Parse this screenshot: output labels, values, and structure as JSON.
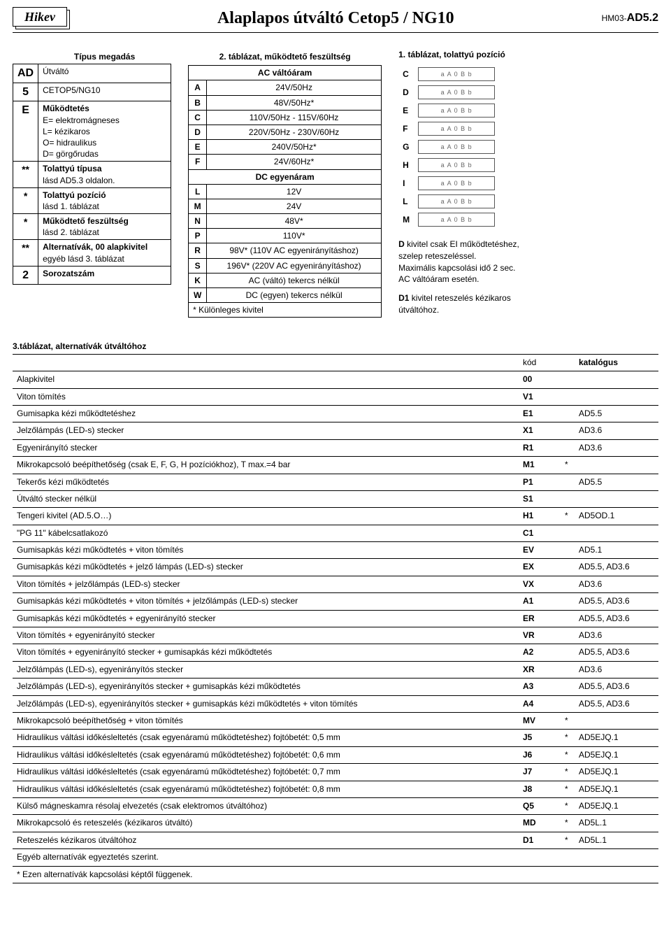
{
  "header": {
    "logo": "Hikev",
    "title": "Alaplapos útváltó Cetop5 / NG10",
    "doc_prefix": "HM03-",
    "doc_code": "AD5.2"
  },
  "table1": {
    "heading": "Típus megadás",
    "rows": [
      {
        "code": "AD",
        "big": true,
        "lines": [
          "Útváltó"
        ]
      },
      {
        "code": "5",
        "big": true,
        "lines": [
          "CETOP5/NG10"
        ]
      },
      {
        "code": "E",
        "big": true,
        "lines": [
          "Működtetés",
          "E= elektromágneses",
          "L= kézikaros",
          "O= hidraulikus",
          "D= görgőrudas"
        ],
        "bold_first": true
      },
      {
        "code": "**",
        "lines": [
          "Tolattyú típusa",
          "lásd AD5.3 oldalon."
        ],
        "bold_first": true
      },
      {
        "code": "*",
        "lines": [
          "Tolattyú pozíció",
          "lásd 1. táblázat"
        ],
        "bold_first": true
      },
      {
        "code": "*",
        "lines": [
          "Működtető feszültség",
          "lásd 2. táblázat"
        ],
        "bold_first": true
      },
      {
        "code": "**",
        "lines": [
          "Alternatívák, 00 alapkivitel",
          "egyéb lásd 3. táblázat"
        ],
        "bold_first": true
      },
      {
        "code": "2",
        "big": true,
        "lines": [
          "Sorozatszám"
        ],
        "bold_first": true
      }
    ]
  },
  "table2": {
    "title": "2. táblázat, működtető feszültség",
    "ac_header": "AC váltóáram",
    "ac": [
      [
        "A",
        "24V/50Hz"
      ],
      [
        "B",
        "48V/50Hz*"
      ],
      [
        "C",
        "110V/50Hz - 115V/60Hz"
      ],
      [
        "D",
        "220V/50Hz - 230V/60Hz"
      ],
      [
        "E",
        "240V/50Hz*"
      ],
      [
        "F",
        "24V/60Hz*"
      ]
    ],
    "dc_header": "DC egyenáram",
    "dc": [
      [
        "L",
        "12V"
      ],
      [
        "M",
        "24V"
      ],
      [
        "N",
        "48V*"
      ],
      [
        "P",
        "110V*"
      ],
      [
        "R",
        "98V* (110V AC egyenirányításhoz)"
      ],
      [
        "S",
        "196V* (220V AC egyenirányításhoz)"
      ],
      [
        "K",
        "AC (váltó) tekercs nélkül"
      ],
      [
        "W",
        "DC (egyen) tekercs nélkül"
      ]
    ],
    "footer": "* Különleges kivitel"
  },
  "right": {
    "title": "1. táblázat, tolattyú pozíció",
    "positions": [
      "C",
      "D",
      "E",
      "F",
      "G",
      "H",
      "I",
      "L",
      "M"
    ],
    "symbol_text": "a  A  0  B  b",
    "note1_lines": [
      "D kivitel csak EI működtetéshez,",
      "szelep reteszeléssel.",
      "Maximális kapcsolási idő 2 sec.",
      "  AC váltóáram esetén."
    ],
    "note2_lines": [
      "D1 kivitel reteszelés kézikaros",
      "útváltóhoz."
    ]
  },
  "table3": {
    "title": "3.táblázat, alternatívák útváltóhoz",
    "head": {
      "kod": "kód",
      "kat": "katalógus"
    },
    "rows": [
      {
        "d": "Alapkivitel",
        "k": "00",
        "s": "",
        "c": ""
      },
      {
        "d": "Viton tömítés",
        "k": "V1",
        "s": "",
        "c": ""
      },
      {
        "d": "Gumisapka kézi működtetéshez",
        "k": "E1",
        "s": "",
        "c": "AD5.5"
      },
      {
        "d": "Jelzőlámpás (LED-s) stecker",
        "k": "X1",
        "s": "",
        "c": "AD3.6"
      },
      {
        "d": "Egyenirányító stecker",
        "k": "R1",
        "s": "",
        "c": "AD3.6"
      },
      {
        "d": "Mikrokapcsoló beépíthetőség (csak E, F, G, H pozíciókhoz), T max.=4 bar",
        "k": "M1",
        "s": "*",
        "c": ""
      },
      {
        "d": "Tekerős kézi működtetés",
        "k": "P1",
        "s": "",
        "c": "AD5.5"
      },
      {
        "d": "Útváltó stecker nélkül",
        "k": "S1",
        "s": "",
        "c": ""
      },
      {
        "d": "Tengeri kivitel (AD.5.O…)",
        "k": "H1",
        "s": "*",
        "c": "AD5OD.1"
      },
      {
        "d": "\"PG 11\"  kábelcsatlakozó",
        "k": "C1",
        "s": "",
        "c": ""
      },
      {
        "d": "Gumisapkás kézi működtetés + viton tömítés",
        "k": "EV",
        "s": "",
        "c": "AD5.1"
      },
      {
        "d": "Gumisapkás kézi működtetés + jelző lámpás (LED-s) stecker",
        "k": "EX",
        "s": "",
        "c": "AD5.5, AD3.6"
      },
      {
        "d": "Viton tömítés + jelzőlámpás (LED-s) stecker",
        "k": "VX",
        "s": "",
        "c": "AD3.6"
      },
      {
        "d": "Gumisapkás kézi működtetés + viton tömítés + jelzőlámpás (LED-s) stecker",
        "k": "A1",
        "s": "",
        "c": "AD5.5, AD3.6"
      },
      {
        "d": "Gumisapkás kézi működtetés + egyenirányító stecker",
        "k": "ER",
        "s": "",
        "c": "AD5.5, AD3.6"
      },
      {
        "d": "Viton tömítés + egyenirányító stecker",
        "k": "VR",
        "s": "",
        "c": "AD3.6"
      },
      {
        "d": "Viton tömítés + egyenirányító stecker + gumisapkás kézi működtetés",
        "k": "A2",
        "s": "",
        "c": "AD5.5, AD3.6"
      },
      {
        "d": "Jelzőlámpás (LED-s), egyenirányítós stecker",
        "k": "XR",
        "s": "",
        "c": "AD3.6"
      },
      {
        "d": "Jelzőlámpás (LED-s), egyenirányítós stecker + gumisapkás kézi működtetés",
        "k": "A3",
        "s": "",
        "c": "AD5.5, AD3.6"
      },
      {
        "d": "Jelzőlámpás (LED-s), egyenirányítós stecker + gumisapkás kézi működtetés + viton tömítés",
        "k": "A4",
        "s": "",
        "c": "AD5.5, AD3.6"
      },
      {
        "d": "Mikrokapcsoló beépíthetőség + viton tömítés",
        "k": "MV",
        "s": "*",
        "c": ""
      },
      {
        "d": "Hidraulikus váltási időkésleltetés (csak egyenáramú működtetéshez)  fojtóbetét: 0,5 mm",
        "k": "J5",
        "s": "*",
        "c": "AD5EJQ.1"
      },
      {
        "d": "Hidraulikus váltási időkésleltetés (csak egyenáramú működtetéshez)  fojtóbetét: 0,6 mm",
        "k": "J6",
        "s": "*",
        "c": "AD5EJQ.1"
      },
      {
        "d": "Hidraulikus váltási időkésleltetés (csak egyenáramú működtetéshez)  fojtóbetét: 0,7 mm",
        "k": "J7",
        "s": "*",
        "c": "AD5EJQ.1"
      },
      {
        "d": "Hidraulikus váltási időkésleltetés (csak egyenáramú működtetéshez)  fojtóbetét: 0,8 mm",
        "k": "J8",
        "s": "*",
        "c": "AD5EJQ.1"
      },
      {
        "d": "Külső mágneskamra résolaj elvezetés (csak elektromos útváltóhoz)",
        "k": "Q5",
        "s": "*",
        "c": "AD5EJQ.1"
      },
      {
        "d": "Mikrokapcsoló és reteszelés (kézikaros útváltó)",
        "k": "MD",
        "s": "*",
        "c": "AD5L.1"
      },
      {
        "d": "Reteszelés kézikaros útváltóhoz",
        "k": "D1",
        "s": "*",
        "c": "AD5L.1"
      }
    ],
    "footer1": "Egyéb alternatívák egyeztetés szerint.",
    "footer2": "* Ezen alternatívák kapcsolási képtől függenek."
  }
}
